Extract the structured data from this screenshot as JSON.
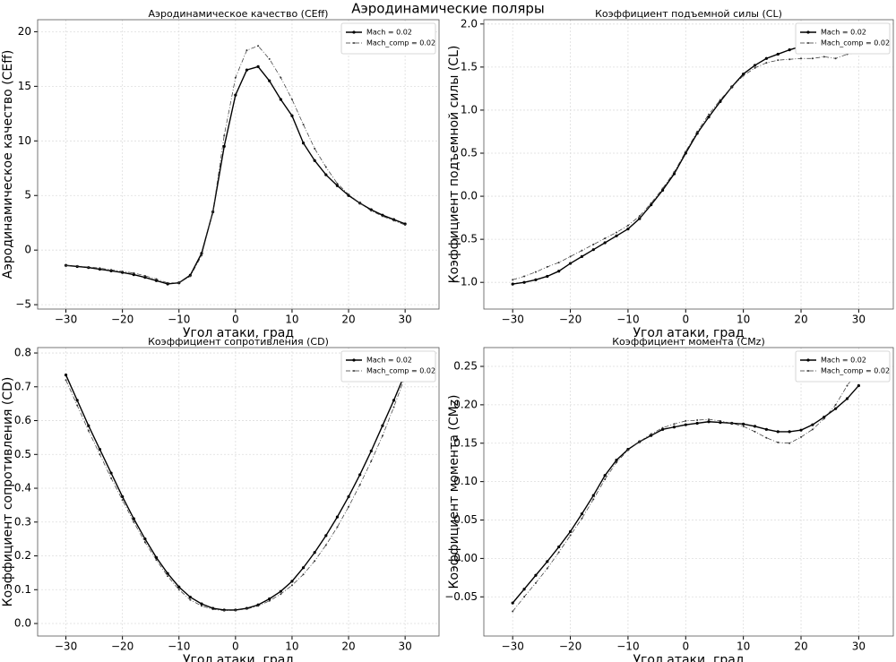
{
  "title": "Аэродинамические поляры",
  "chart_data": [
    {
      "type": "line",
      "title": "Аэродинамическое качество (CEff)",
      "xlabel": "Угол атаки, град",
      "ylabel": "Аэродинамическое качество (CEff)",
      "x": [
        -30,
        -28,
        -26,
        -24,
        -22,
        -20,
        -18,
        -16,
        -14,
        -12,
        -10,
        -8,
        -6,
        -4,
        -2,
        0,
        2,
        4,
        6,
        8,
        10,
        12,
        14,
        16,
        18,
        20,
        22,
        24,
        26,
        28,
        30
      ],
      "series": [
        {
          "name": "Mach = 0.02",
          "color": "#000000",
          "linestyle": "solid",
          "values": [
            -1.4,
            -1.5,
            -1.6,
            -1.75,
            -1.9,
            -2.05,
            -2.25,
            -2.5,
            -2.8,
            -3.1,
            -3.0,
            -2.3,
            -0.3,
            3.5,
            9.5,
            14.2,
            16.5,
            16.8,
            15.5,
            13.8,
            12.3,
            9.8,
            8.2,
            6.9,
            5.9,
            5.0,
            4.3,
            3.7,
            3.2,
            2.8,
            2.4
          ]
        },
        {
          "name": "Mach_comp = 0.02",
          "color": "#333333",
          "linestyle": "dashdot",
          "values": [
            -1.4,
            -1.45,
            -1.55,
            -1.65,
            -1.8,
            -1.95,
            -2.1,
            -2.35,
            -2.65,
            -3.0,
            -3.0,
            -2.4,
            -0.5,
            3.5,
            10.5,
            15.8,
            18.3,
            18.7,
            17.5,
            15.8,
            13.8,
            11.5,
            9.3,
            7.6,
            6.1,
            5.1,
            4.3,
            3.6,
            3.1,
            2.7,
            2.3
          ]
        }
      ],
      "xlim": [
        -35,
        36
      ],
      "xticks": [
        {
          "value": -30,
          "label": "−30"
        },
        {
          "value": -20,
          "label": "−20"
        },
        {
          "value": -10,
          "label": "−10"
        },
        0,
        10,
        20,
        30
      ],
      "ylim": [
        -5.4,
        21.1
      ],
      "yticks": [
        {
          "value": -5,
          "label": "−5"
        },
        0,
        5,
        10,
        15,
        20
      ],
      "grid": true,
      "legend": "upper right"
    },
    {
      "type": "line",
      "title": "Коэффициент подъемной силы (CL)",
      "xlabel": "Угол атаки, град",
      "ylabel": "Коэффициент подъемной силы (CL)",
      "x": [
        -30,
        -28,
        -26,
        -24,
        -22,
        -20,
        -18,
        -16,
        -14,
        -12,
        -10,
        -8,
        -6,
        -4,
        -2,
        0,
        2,
        4,
        6,
        8,
        10,
        12,
        14,
        16,
        18,
        20,
        22,
        24,
        26,
        28,
        30
      ],
      "series": [
        {
          "name": "Mach = 0.02",
          "color": "#000000",
          "linestyle": "solid",
          "values": [
            -1.02,
            -1.0,
            -0.97,
            -0.93,
            -0.87,
            -0.78,
            -0.7,
            -0.62,
            -0.54,
            -0.46,
            -0.38,
            -0.26,
            -0.1,
            0.07,
            0.26,
            0.5,
            0.73,
            0.92,
            1.1,
            1.27,
            1.42,
            1.52,
            1.6,
            1.65,
            1.7,
            1.74,
            1.75,
            1.75,
            1.76,
            1.75,
            1.75
          ]
        },
        {
          "name": "Mach_comp = 0.02",
          "color": "#333333",
          "linestyle": "dashdot",
          "values": [
            -0.97,
            -0.93,
            -0.88,
            -0.82,
            -0.77,
            -0.7,
            -0.63,
            -0.56,
            -0.49,
            -0.42,
            -0.34,
            -0.23,
            -0.08,
            0.09,
            0.28,
            0.52,
            0.75,
            0.95,
            1.12,
            1.27,
            1.4,
            1.49,
            1.55,
            1.58,
            1.59,
            1.6,
            1.6,
            1.62,
            1.6,
            1.65,
            1.67
          ]
        }
      ],
      "xlim": [
        -35,
        36
      ],
      "xticks": [
        {
          "value": -30,
          "label": "−30"
        },
        {
          "value": -20,
          "label": "−20"
        },
        {
          "value": -10,
          "label": "−10"
        },
        0,
        10,
        20,
        30
      ],
      "ylim": [
        -1.31,
        2.05
      ],
      "yticks": [
        {
          "value": -1,
          "label": "−1.0"
        },
        {
          "value": -0.5,
          "label": "−0.5"
        },
        {
          "value": 0,
          "label": "0.0"
        },
        0.5,
        {
          "value": 1,
          "label": "1.0"
        },
        1.5,
        {
          "value": 2,
          "label": "2.0"
        }
      ],
      "grid": true,
      "legend": "upper right"
    },
    {
      "type": "line",
      "title": "Коэффициент сопротивления (CD)",
      "xlabel": "Угол атаки, град",
      "ylabel": "Коэффициент сопротивления (CD)",
      "x": [
        -30,
        -28,
        -26,
        -24,
        -22,
        -20,
        -18,
        -16,
        -14,
        -12,
        -10,
        -8,
        -6,
        -4,
        -2,
        0,
        2,
        4,
        6,
        8,
        10,
        12,
        14,
        16,
        18,
        20,
        22,
        24,
        26,
        28,
        30
      ],
      "series": [
        {
          "name": "Mach = 0.02",
          "color": "#000000",
          "linestyle": "solid",
          "values": [
            0.735,
            0.66,
            0.585,
            0.515,
            0.445,
            0.375,
            0.31,
            0.25,
            0.195,
            0.148,
            0.108,
            0.078,
            0.058,
            0.045,
            0.04,
            0.04,
            0.045,
            0.055,
            0.073,
            0.095,
            0.125,
            0.165,
            0.21,
            0.26,
            0.315,
            0.375,
            0.44,
            0.51,
            0.585,
            0.66,
            0.74
          ]
        },
        {
          "name": "Mach_comp = 0.02",
          "color": "#333333",
          "linestyle": "dashdot",
          "values": [
            0.72,
            0.645,
            0.57,
            0.5,
            0.43,
            0.365,
            0.3,
            0.24,
            0.188,
            0.14,
            0.1,
            0.07,
            0.052,
            0.042,
            0.038,
            0.039,
            0.043,
            0.052,
            0.067,
            0.087,
            0.113,
            0.145,
            0.185,
            0.232,
            0.285,
            0.345,
            0.41,
            0.48,
            0.555,
            0.64,
            0.73
          ]
        }
      ],
      "xlim": [
        -35,
        36
      ],
      "xticks": [
        {
          "value": -30,
          "label": "−30"
        },
        {
          "value": -20,
          "label": "−20"
        },
        {
          "value": -10,
          "label": "−10"
        },
        0,
        10,
        20,
        30
      ],
      "ylim": [
        -0.037,
        0.816
      ],
      "yticks": [
        {
          "value": 0,
          "label": "0.0"
        },
        0.1,
        0.2,
        0.3,
        0.4,
        0.5,
        0.6,
        0.7,
        0.8
      ],
      "grid": true,
      "legend": "upper right"
    },
    {
      "type": "line",
      "title": "Коэффициент момента (CMz)",
      "xlabel": "Угол атаки, град",
      "ylabel": "Коэффициент момента (CMz)",
      "x": [
        -30,
        -28,
        -26,
        -24,
        -22,
        -20,
        -18,
        -16,
        -14,
        -12,
        -10,
        -8,
        -6,
        -4,
        -2,
        0,
        2,
        4,
        6,
        8,
        10,
        12,
        14,
        16,
        18,
        20,
        22,
        24,
        26,
        28,
        30
      ],
      "series": [
        {
          "name": "Mach = 0.02",
          "color": "#000000",
          "linestyle": "solid",
          "values": [
            -0.058,
            -0.04,
            -0.022,
            -0.004,
            0.015,
            0.035,
            0.058,
            0.082,
            0.108,
            0.128,
            0.142,
            0.152,
            0.16,
            0.168,
            0.171,
            0.174,
            0.176,
            0.178,
            0.177,
            0.176,
            0.175,
            0.172,
            0.168,
            0.165,
            0.165,
            0.167,
            0.174,
            0.184,
            0.195,
            0.208,
            0.225
          ]
        },
        {
          "name": "Mach_comp = 0.02",
          "color": "#333333",
          "linestyle": "dashdot",
          "values": [
            -0.069,
            -0.05,
            -0.032,
            -0.013,
            0.008,
            0.03,
            0.052,
            0.077,
            0.103,
            0.125,
            0.141,
            0.152,
            0.162,
            0.17,
            0.175,
            0.179,
            0.18,
            0.181,
            0.179,
            0.176,
            0.172,
            0.165,
            0.157,
            0.151,
            0.15,
            0.158,
            0.168,
            0.182,
            0.2,
            0.225,
            0.245
          ]
        }
      ],
      "xlim": [
        -35,
        36
      ],
      "xticks": [
        {
          "value": -30,
          "label": "−30"
        },
        {
          "value": -20,
          "label": "−20"
        },
        {
          "value": -10,
          "label": "−10"
        },
        0,
        10,
        20,
        30
      ],
      "ylim": [
        -0.101,
        0.2745
      ],
      "yticks": [
        {
          "value": -0.05,
          "label": "−0.05"
        },
        {
          "value": 0,
          "label": "0.00"
        },
        0.05,
        {
          "value": 0.1,
          "label": "0.10"
        },
        0.15,
        {
          "value": 0.2,
          "label": "0.20"
        },
        0.25
      ],
      "grid": true,
      "legend": "upper right"
    }
  ]
}
